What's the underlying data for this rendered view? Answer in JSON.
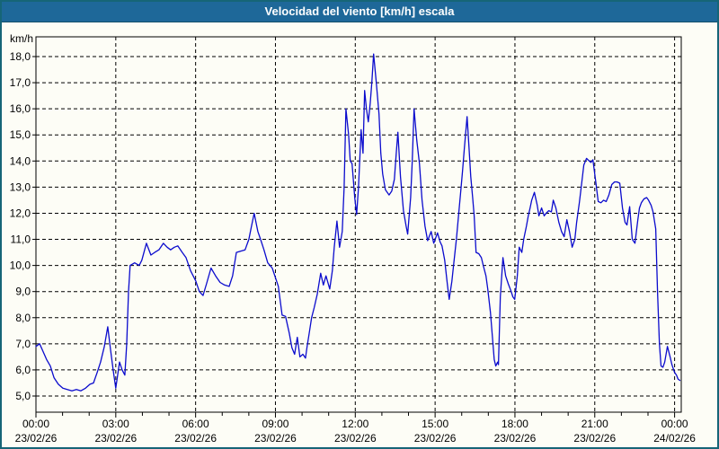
{
  "window": {
    "title": "Velocidad del viento [km/h] escala"
  },
  "colors": {
    "title_bar_bg": "#1e6899",
    "window_border": "#166577",
    "line": "#0b0bcd",
    "grid": "#000000",
    "axis": "#000000",
    "plot_bg": "#fdfdf6",
    "text": "#000000"
  },
  "chart_data": {
    "type": "line",
    "title": "Velocidad del viento [km/h] escala",
    "y_unit_label": "km/h",
    "ylim": [
      5.0,
      18.0
    ],
    "y_tick_values": [
      5,
      6,
      7,
      8,
      9,
      10,
      11,
      12,
      13,
      14,
      15,
      16,
      17,
      18
    ],
    "y_tick_labels": [
      "5,0",
      "6,0",
      "7,0",
      "8,0",
      "9,0",
      "10,0",
      "11,0",
      "12,0",
      "13,0",
      "14,0",
      "15,0",
      "16,0",
      "17,0",
      "18,0"
    ],
    "xlim_hours": [
      0,
      24.25
    ],
    "grid": "dashed",
    "legend": "none",
    "x_ticks": [
      {
        "hour": 0,
        "time": "00:00",
        "date": "23/02/26"
      },
      {
        "hour": 3,
        "time": "03:00",
        "date": "23/02/26"
      },
      {
        "hour": 6,
        "time": "06:00",
        "date": "23/02/26"
      },
      {
        "hour": 9,
        "time": "09:00",
        "date": "23/02/26"
      },
      {
        "hour": 12,
        "time": "12:00",
        "date": "23/02/26"
      },
      {
        "hour": 15,
        "time": "15:00",
        "date": "23/02/26"
      },
      {
        "hour": 18,
        "time": "18:00",
        "date": "23/02/26"
      },
      {
        "hour": 21,
        "time": "21:00",
        "date": "23/02/26"
      },
      {
        "hour": 24,
        "time": "00:00",
        "date": "24/02/26"
      }
    ],
    "series": [
      {
        "name": "wind_speed_kmh",
        "points": [
          [
            0,
            6.9
          ],
          [
            0.14,
            7.0
          ],
          [
            0.27,
            6.7
          ],
          [
            0.4,
            6.4
          ],
          [
            0.54,
            6.15
          ],
          [
            0.68,
            5.7
          ],
          [
            0.84,
            5.45
          ],
          [
            1.01,
            5.3
          ],
          [
            1.18,
            5.25
          ],
          [
            1.35,
            5.2
          ],
          [
            1.52,
            5.25
          ],
          [
            1.69,
            5.2
          ],
          [
            1.86,
            5.3
          ],
          [
            2.03,
            5.45
          ],
          [
            2.16,
            5.5
          ],
          [
            2.3,
            5.9
          ],
          [
            2.43,
            6.3
          ],
          [
            2.57,
            6.9
          ],
          [
            2.7,
            7.65
          ],
          [
            2.8,
            6.8
          ],
          [
            2.9,
            6.0
          ],
          [
            3.0,
            5.3
          ],
          [
            3.14,
            6.3
          ],
          [
            3.24,
            6.0
          ],
          [
            3.34,
            5.8
          ],
          [
            3.41,
            7.0
          ],
          [
            3.48,
            9.0
          ],
          [
            3.54,
            10.0
          ],
          [
            3.71,
            10.1
          ],
          [
            3.88,
            10.0
          ],
          [
            3.98,
            10.2
          ],
          [
            4.15,
            10.85
          ],
          [
            4.32,
            10.4
          ],
          [
            4.46,
            10.5
          ],
          [
            4.62,
            10.6
          ],
          [
            4.79,
            10.85
          ],
          [
            4.93,
            10.7
          ],
          [
            5.06,
            10.6
          ],
          [
            5.2,
            10.7
          ],
          [
            5.33,
            10.75
          ],
          [
            5.5,
            10.5
          ],
          [
            5.64,
            10.3
          ],
          [
            5.81,
            9.8
          ],
          [
            6.01,
            9.4
          ],
          [
            6.14,
            9.0
          ],
          [
            6.28,
            8.85
          ],
          [
            6.41,
            9.3
          ],
          [
            6.58,
            9.9
          ],
          [
            6.75,
            9.6
          ],
          [
            6.92,
            9.35
          ],
          [
            7.09,
            9.25
          ],
          [
            7.26,
            9.2
          ],
          [
            7.39,
            9.6
          ],
          [
            7.53,
            10.5
          ],
          [
            7.7,
            10.55
          ],
          [
            7.86,
            10.6
          ],
          [
            8.0,
            11.0
          ],
          [
            8.1,
            11.5
          ],
          [
            8.2,
            12.0
          ],
          [
            8.34,
            11.3
          ],
          [
            8.44,
            11.0
          ],
          [
            8.57,
            10.6
          ],
          [
            8.71,
            10.1
          ],
          [
            8.88,
            9.9
          ],
          [
            9.01,
            9.5
          ],
          [
            9.11,
            9.2
          ],
          [
            9.25,
            8.1
          ],
          [
            9.38,
            8.05
          ],
          [
            9.52,
            7.4
          ],
          [
            9.62,
            6.85
          ],
          [
            9.72,
            6.6
          ],
          [
            9.82,
            7.25
          ],
          [
            9.92,
            6.5
          ],
          [
            10.03,
            6.6
          ],
          [
            10.13,
            6.45
          ],
          [
            10.19,
            6.9
          ],
          [
            10.26,
            7.35
          ],
          [
            10.36,
            8.0
          ],
          [
            10.46,
            8.4
          ],
          [
            10.57,
            8.9
          ],
          [
            10.7,
            9.7
          ],
          [
            10.8,
            9.25
          ],
          [
            10.9,
            9.6
          ],
          [
            11.04,
            9.1
          ],
          [
            11.14,
            9.8
          ],
          [
            11.21,
            10.7
          ],
          [
            11.31,
            11.7
          ],
          [
            11.41,
            10.7
          ],
          [
            11.51,
            11.3
          ],
          [
            11.58,
            13.0
          ],
          [
            11.65,
            16.0
          ],
          [
            11.75,
            15.0
          ],
          [
            11.81,
            14.0
          ],
          [
            11.88,
            13.9
          ],
          [
            11.98,
            12.6
          ],
          [
            12.05,
            11.95
          ],
          [
            12.12,
            13.0
          ],
          [
            12.22,
            15.2
          ],
          [
            12.29,
            14.3
          ],
          [
            12.35,
            16.7
          ],
          [
            12.42,
            16.0
          ],
          [
            12.49,
            15.5
          ],
          [
            12.56,
            16.2
          ],
          [
            12.62,
            17.0
          ],
          [
            12.69,
            18.1
          ],
          [
            12.79,
            17.0
          ],
          [
            12.89,
            15.8
          ],
          [
            12.96,
            14.3
          ],
          [
            13.03,
            13.5
          ],
          [
            13.13,
            12.9
          ],
          [
            13.27,
            12.7
          ],
          [
            13.37,
            12.85
          ],
          [
            13.47,
            13.3
          ],
          [
            13.54,
            14.3
          ],
          [
            13.6,
            15.1
          ],
          [
            13.7,
            13.4
          ],
          [
            13.81,
            12.1
          ],
          [
            13.91,
            11.5
          ],
          [
            13.97,
            11.2
          ],
          [
            14.08,
            12.6
          ],
          [
            14.14,
            14.0
          ],
          [
            14.21,
            16.0
          ],
          [
            14.31,
            14.8
          ],
          [
            14.41,
            13.9
          ],
          [
            14.51,
            12.5
          ],
          [
            14.62,
            11.5
          ],
          [
            14.72,
            10.95
          ],
          [
            14.85,
            11.3
          ],
          [
            14.95,
            10.85
          ],
          [
            15.09,
            11.25
          ],
          [
            15.19,
            10.9
          ],
          [
            15.26,
            10.75
          ],
          [
            15.36,
            10.2
          ],
          [
            15.46,
            9.3
          ],
          [
            15.53,
            8.7
          ],
          [
            15.63,
            9.4
          ],
          [
            15.7,
            10.05
          ],
          [
            15.8,
            11.0
          ],
          [
            15.87,
            11.8
          ],
          [
            15.97,
            12.9
          ],
          [
            16.03,
            13.6
          ],
          [
            16.1,
            14.5
          ],
          [
            16.2,
            15.7
          ],
          [
            16.27,
            14.6
          ],
          [
            16.34,
            13.4
          ],
          [
            16.41,
            12.6
          ],
          [
            16.47,
            11.9
          ],
          [
            16.54,
            10.5
          ],
          [
            16.64,
            10.45
          ],
          [
            16.74,
            10.3
          ],
          [
            16.81,
            10.0
          ],
          [
            16.91,
            9.6
          ],
          [
            16.98,
            9.1
          ],
          [
            17.08,
            8.2
          ],
          [
            17.15,
            7.3
          ],
          [
            17.22,
            6.4
          ],
          [
            17.28,
            6.15
          ],
          [
            17.35,
            6.3
          ],
          [
            17.38,
            6.2
          ],
          [
            17.45,
            8.8
          ],
          [
            17.55,
            10.3
          ],
          [
            17.65,
            9.6
          ],
          [
            17.75,
            9.3
          ],
          [
            17.86,
            9.0
          ],
          [
            17.92,
            8.8
          ],
          [
            17.99,
            8.7
          ],
          [
            18.09,
            9.6
          ],
          [
            18.16,
            10.7
          ],
          [
            18.26,
            10.5
          ],
          [
            18.33,
            11.0
          ],
          [
            18.43,
            11.5
          ],
          [
            18.5,
            11.9
          ],
          [
            18.57,
            12.2
          ],
          [
            18.63,
            12.5
          ],
          [
            18.73,
            12.8
          ],
          [
            18.84,
            12.3
          ],
          [
            18.9,
            11.9
          ],
          [
            19.0,
            12.2
          ],
          [
            19.1,
            11.9
          ],
          [
            19.17,
            12.0
          ],
          [
            19.27,
            12.1
          ],
          [
            19.37,
            12.05
          ],
          [
            19.44,
            12.5
          ],
          [
            19.54,
            12.2
          ],
          [
            19.65,
            11.65
          ],
          [
            19.75,
            11.3
          ],
          [
            19.85,
            11.1
          ],
          [
            19.95,
            11.75
          ],
          [
            20.05,
            11.3
          ],
          [
            20.15,
            10.7
          ],
          [
            20.25,
            11.0
          ],
          [
            20.32,
            11.65
          ],
          [
            20.42,
            12.4
          ],
          [
            20.49,
            13.0
          ],
          [
            20.59,
            13.85
          ],
          [
            20.69,
            14.1
          ],
          [
            20.79,
            14.0
          ],
          [
            20.86,
            13.95
          ],
          [
            20.93,
            14.05
          ],
          [
            21.03,
            13.25
          ],
          [
            21.13,
            12.45
          ],
          [
            21.23,
            12.4
          ],
          [
            21.33,
            12.5
          ],
          [
            21.43,
            12.45
          ],
          [
            21.53,
            12.7
          ],
          [
            21.64,
            13.1
          ],
          [
            21.74,
            13.2
          ],
          [
            21.84,
            13.2
          ],
          [
            21.94,
            13.15
          ],
          [
            22.04,
            12.2
          ],
          [
            22.14,
            11.65
          ],
          [
            22.21,
            11.55
          ],
          [
            22.31,
            12.25
          ],
          [
            22.41,
            11.0
          ],
          [
            22.51,
            10.85
          ],
          [
            22.62,
            11.75
          ],
          [
            22.68,
            12.2
          ],
          [
            22.75,
            12.4
          ],
          [
            22.85,
            12.55
          ],
          [
            22.95,
            12.6
          ],
          [
            23.02,
            12.5
          ],
          [
            23.12,
            12.3
          ],
          [
            23.19,
            12.05
          ],
          [
            23.29,
            11.4
          ],
          [
            23.36,
            9.0
          ],
          [
            23.43,
            7.0
          ],
          [
            23.49,
            6.15
          ],
          [
            23.56,
            6.1
          ],
          [
            23.63,
            6.3
          ],
          [
            23.73,
            6.9
          ],
          [
            23.83,
            6.5
          ],
          [
            23.9,
            6.2
          ],
          [
            24.0,
            5.9
          ],
          [
            24.07,
            5.8
          ],
          [
            24.13,
            5.65
          ],
          [
            24.2,
            5.6
          ]
        ]
      }
    ]
  }
}
